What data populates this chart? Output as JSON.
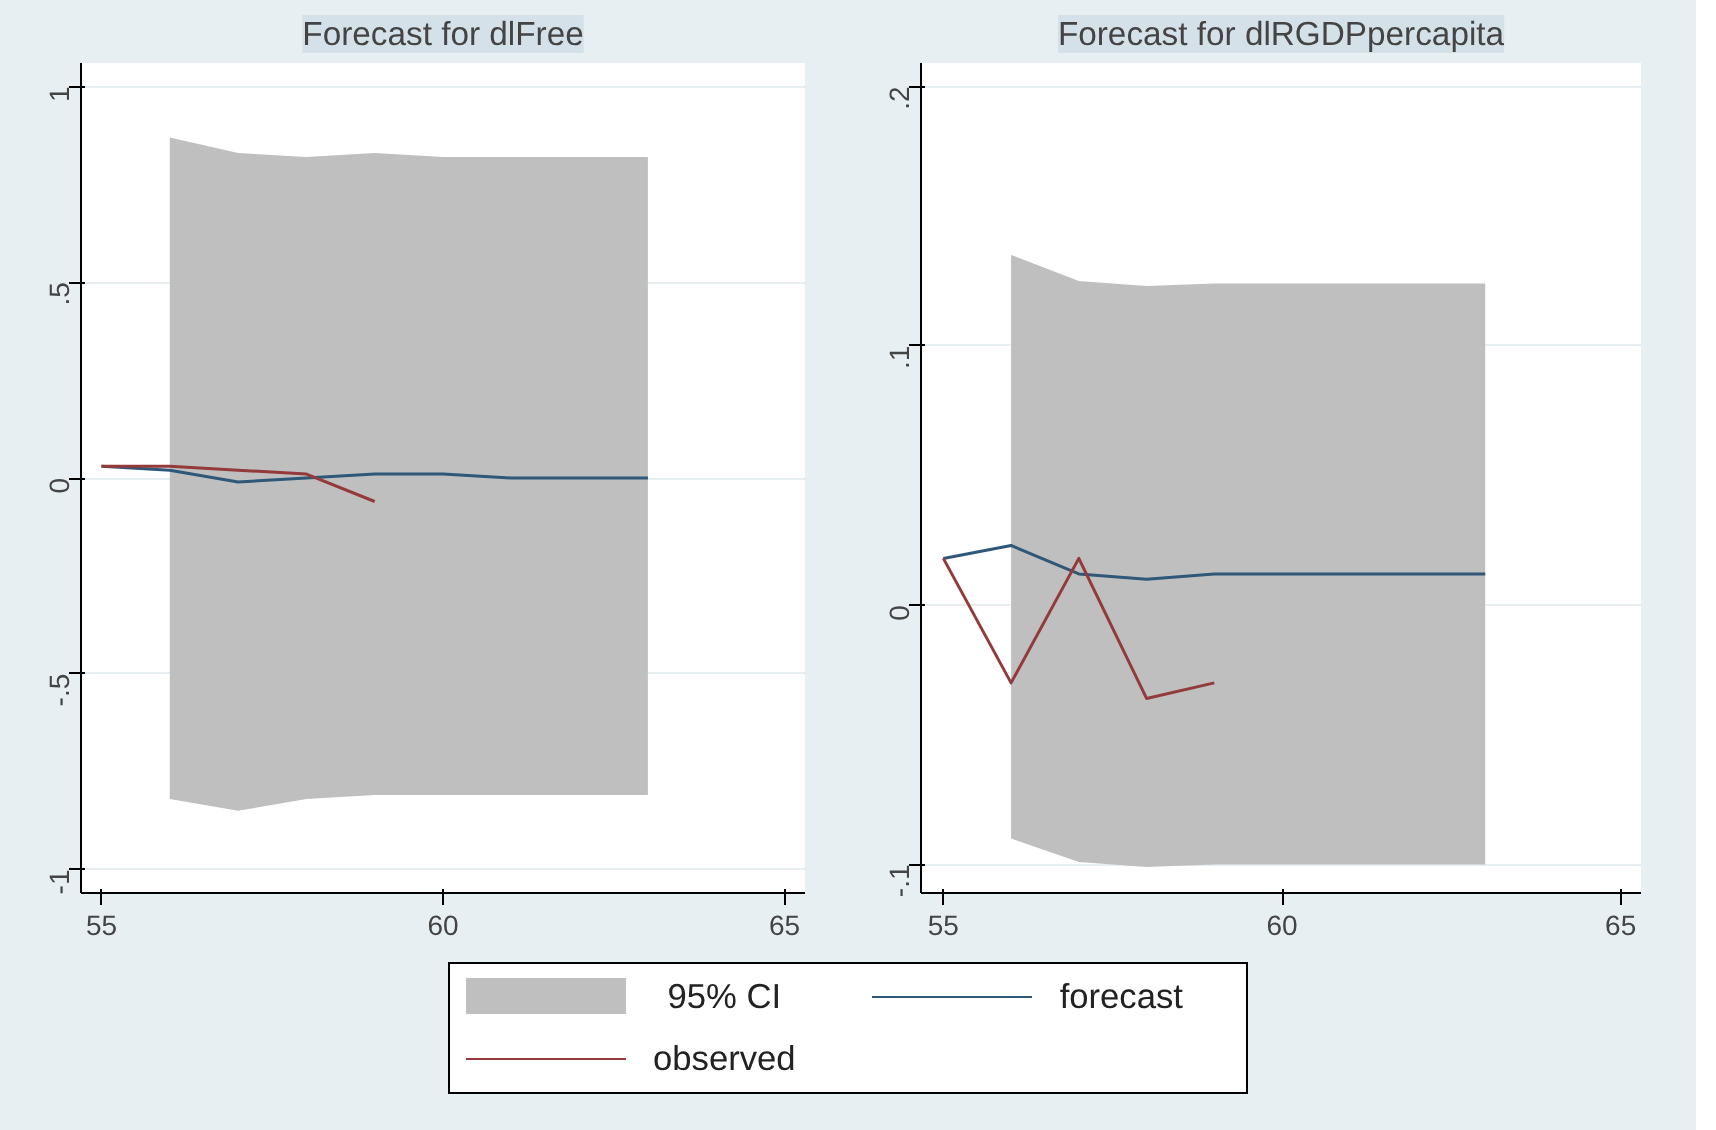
{
  "chart_data": [
    {
      "type": "line",
      "title": "Forecast for dlFree",
      "xlim": [
        54.7,
        65.3
      ],
      "xticks": [
        55,
        60,
        65
      ],
      "ylim": [
        -1.06,
        1.06
      ],
      "yticks": [
        {
          "value": -1,
          "label": "-1"
        },
        {
          "value": -0.5,
          "label": "-.5"
        },
        0,
        {
          "value": 0.5,
          "label": ".5"
        },
        1
      ],
      "grid": "y",
      "legend": "bottom",
      "annotations": [
        "95% CI"
      ],
      "series": [
        {
          "name": "forecast",
          "color": "#2f5778",
          "x": [
            55,
            56,
            57,
            58,
            59,
            60,
            61,
            62,
            63
          ],
          "values": [
            0.03,
            0.02,
            -0.01,
            0.0,
            0.01,
            0.01,
            0.0,
            0.0,
            0.0
          ],
          "lower": [
            null,
            -0.82,
            -0.85,
            -0.82,
            -0.81,
            -0.81,
            -0.81,
            -0.81,
            -0.81
          ],
          "upper": [
            null,
            0.87,
            0.83,
            0.82,
            0.83,
            0.82,
            0.82,
            0.82,
            0.82
          ]
        },
        {
          "name": "observed",
          "color": "#943a3a",
          "x": [
            55,
            56,
            57,
            58,
            59
          ],
          "values": [
            0.03,
            0.03,
            0.02,
            0.01,
            -0.06
          ]
        }
      ]
    },
    {
      "type": "line",
      "title": "Forecast for dlRGDPpercapita",
      "xlim": [
        54.67,
        65.3
      ],
      "xticks": [
        55,
        60,
        65
      ],
      "ylim": [
        -0.111,
        0.209
      ],
      "yticks": [
        {
          "value": -0.1,
          "label": "-.1"
        },
        0,
        {
          "value": 0.1,
          "label": ".1"
        },
        {
          "value": 0.2,
          "label": ".2"
        }
      ],
      "grid": "y",
      "series": [
        {
          "color": "#2f5778",
          "x": [
            55,
            56,
            57,
            58,
            59,
            60,
            61,
            62,
            63
          ],
          "values": [
            0.018,
            0.023,
            0.012,
            0.01,
            0.012,
            0.012,
            0.012,
            0.012,
            0.012
          ],
          "lower": [
            null,
            -0.09,
            -0.099,
            -0.101,
            -0.1,
            -0.1,
            -0.1,
            -0.1,
            -0.1
          ],
          "upper": [
            null,
            0.135,
            0.125,
            0.123,
            0.124,
            0.124,
            0.124,
            0.124,
            0.124
          ]
        },
        {
          "color": "#943a3a",
          "x": [
            55,
            56,
            57,
            58,
            59
          ],
          "values": [
            0.018,
            -0.03,
            0.018,
            -0.036,
            -0.03
          ]
        }
      ]
    }
  ]
}
